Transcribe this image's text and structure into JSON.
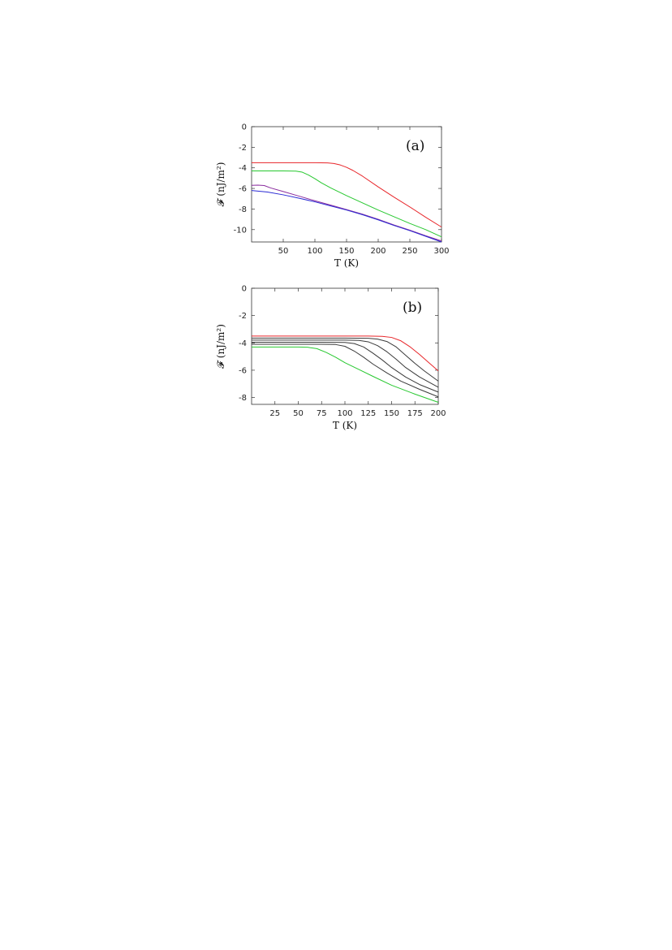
{
  "chart_data": [
    {
      "type": "line",
      "panel_label": "(a)",
      "xlabel": "T (K)",
      "ylabel": "𝓕 (nJ/m²)",
      "xlim": [
        0,
        300
      ],
      "ylim": [
        -11.2,
        0
      ],
      "xticks": [
        50,
        100,
        150,
        200,
        250,
        300
      ],
      "yticks": [
        0,
        -2,
        -4,
        -6,
        -8,
        -10
      ],
      "grid": false,
      "series": [
        {
          "color": "#e8262a",
          "x": [
            0,
            25,
            50,
            75,
            100,
            120,
            130,
            140,
            150,
            160,
            175,
            200,
            225,
            250,
            275,
            300
          ],
          "y": [
            -3.5,
            -3.5,
            -3.5,
            -3.5,
            -3.5,
            -3.52,
            -3.58,
            -3.72,
            -3.95,
            -4.25,
            -4.8,
            -5.85,
            -6.85,
            -7.8,
            -8.8,
            -9.75
          ]
        },
        {
          "color": "#27c82f",
          "x": [
            0,
            25,
            50,
            70,
            80,
            90,
            100,
            110,
            125,
            150,
            175,
            200,
            225,
            250,
            275,
            300
          ],
          "y": [
            -4.3,
            -4.3,
            -4.3,
            -4.32,
            -4.42,
            -4.7,
            -5.05,
            -5.45,
            -5.95,
            -6.7,
            -7.4,
            -8.1,
            -8.75,
            -9.4,
            -10.0,
            -10.7
          ]
        },
        {
          "color": "#8a2c9e",
          "x": [
            0,
            10,
            20,
            30,
            50,
            75,
            100,
            125,
            150,
            175,
            200,
            225,
            250,
            275,
            300
          ],
          "y": [
            -5.7,
            -5.68,
            -5.72,
            -5.95,
            -6.3,
            -6.75,
            -7.2,
            -7.62,
            -8.05,
            -8.5,
            -9.0,
            -9.55,
            -10.05,
            -10.6,
            -11.1
          ]
        },
        {
          "color": "#2a2ad4",
          "x": [
            0,
            25,
            50,
            75,
            100,
            125,
            150,
            175,
            200,
            225,
            250,
            275,
            300
          ],
          "y": [
            -6.2,
            -6.35,
            -6.62,
            -6.95,
            -7.3,
            -7.7,
            -8.1,
            -8.55,
            -9.05,
            -9.6,
            -10.1,
            -10.65,
            -11.2
          ]
        }
      ]
    },
    {
      "type": "line",
      "panel_label": "(b)",
      "xlabel": "T (K)",
      "ylabel": "𝓕 (nJ/m²)",
      "xlim": [
        0,
        200
      ],
      "ylim": [
        -8.5,
        0
      ],
      "xticks": [
        25,
        50,
        75,
        100,
        125,
        150,
        175,
        200
      ],
      "yticks": [
        0,
        -2,
        -4,
        -6,
        -8
      ],
      "grid": false,
      "series": [
        {
          "color": "#e8262a",
          "x": [
            0,
            25,
            50,
            75,
            100,
            125,
            140,
            150,
            160,
            170,
            180,
            190,
            200
          ],
          "y": [
            -3.5,
            -3.5,
            -3.5,
            -3.5,
            -3.5,
            -3.5,
            -3.52,
            -3.6,
            -3.85,
            -4.3,
            -4.85,
            -5.45,
            -6.05
          ]
        },
        {
          "color": "#3a3a3a",
          "x": [
            0,
            25,
            50,
            75,
            100,
            125,
            135,
            145,
            155,
            165,
            175,
            185,
            200
          ],
          "y": [
            -3.65,
            -3.65,
            -3.65,
            -3.65,
            -3.65,
            -3.66,
            -3.72,
            -3.9,
            -4.3,
            -4.9,
            -5.5,
            -6.05,
            -6.8
          ]
        },
        {
          "color": "#3a3a3a",
          "x": [
            0,
            25,
            50,
            75,
            100,
            115,
            125,
            135,
            145,
            155,
            165,
            180,
            200
          ],
          "y": [
            -3.8,
            -3.8,
            -3.8,
            -3.8,
            -3.8,
            -3.82,
            -3.92,
            -4.2,
            -4.65,
            -5.2,
            -5.8,
            -6.5,
            -7.25
          ]
        },
        {
          "color": "#3a3a3a",
          "x": [
            0,
            25,
            50,
            75,
            100,
            110,
            120,
            130,
            140,
            150,
            165,
            180,
            200
          ],
          "y": [
            -3.95,
            -3.95,
            -3.95,
            -3.95,
            -3.97,
            -4.05,
            -4.3,
            -4.75,
            -5.25,
            -5.8,
            -6.5,
            -7.05,
            -7.6
          ]
        },
        {
          "color": "#3a3a3a",
          "x": [
            0,
            25,
            50,
            75,
            90,
            100,
            110,
            120,
            130,
            145,
            160,
            180,
            200
          ],
          "y": [
            -4.1,
            -4.1,
            -4.1,
            -4.1,
            -4.12,
            -4.25,
            -4.6,
            -5.05,
            -5.55,
            -6.2,
            -6.8,
            -7.4,
            -7.95
          ]
        },
        {
          "color": "#27c82f",
          "x": [
            0,
            25,
            50,
            60,
            70,
            80,
            90,
            100,
            115,
            130,
            150,
            175,
            200
          ],
          "y": [
            -4.3,
            -4.3,
            -4.3,
            -4.32,
            -4.42,
            -4.7,
            -5.05,
            -5.45,
            -5.95,
            -6.45,
            -7.1,
            -7.75,
            -8.35
          ]
        }
      ]
    }
  ]
}
